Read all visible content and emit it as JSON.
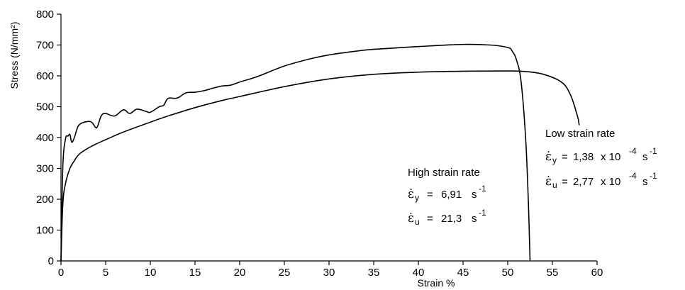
{
  "chart_data": {
    "type": "line",
    "title": "",
    "xlabel": "Strain %",
    "ylabel": "Stress (N/mm²)",
    "xlim": [
      0,
      60
    ],
    "ylim": [
      0,
      800
    ],
    "x_ticks": [
      0,
      5,
      10,
      15,
      20,
      25,
      30,
      35,
      40,
      45,
      50,
      55,
      60
    ],
    "y_ticks": [
      0,
      100,
      200,
      300,
      400,
      500,
      600,
      700,
      800
    ],
    "grid": false,
    "legend": "none",
    "series": [
      {
        "name": "High strain rate",
        "color": "#000000",
        "points": [
          [
            0,
            0
          ],
          [
            0.2,
            180
          ],
          [
            0.5,
            250
          ],
          [
            1,
            300
          ],
          [
            1.5,
            325
          ],
          [
            2,
            345
          ],
          [
            3,
            365
          ],
          [
            4,
            380
          ],
          [
            5,
            393
          ],
          [
            7,
            418
          ],
          [
            10,
            450
          ],
          [
            12,
            470
          ],
          [
            15,
            497
          ],
          [
            18,
            520
          ],
          [
            20,
            533
          ],
          [
            25,
            565
          ],
          [
            30,
            590
          ],
          [
            35,
            605
          ],
          [
            40,
            612
          ],
          [
            45,
            615
          ],
          [
            50,
            616
          ],
          [
            52,
            614
          ],
          [
            54,
            605
          ],
          [
            56,
            580
          ],
          [
            57,
            540
          ],
          [
            57.8,
            470
          ],
          [
            58,
            440
          ]
        ],
        "rates": [
          {
            "symbol": "ε̇",
            "sub": "y",
            "value": "6,91",
            "unit": "s",
            "exp": "-1"
          },
          {
            "symbol": "ε̇",
            "sub": "u",
            "value": "21,3",
            "unit": "s",
            "exp": "-1"
          }
        ],
        "label": "High strain rate"
      },
      {
        "name": "Low strain rate",
        "color": "#000000",
        "points": [
          [
            0,
            0
          ],
          [
            0.2,
            300
          ],
          [
            0.5,
            395
          ],
          [
            0.8,
            405
          ],
          [
            1,
            410
          ],
          [
            1.2,
            385
          ],
          [
            1.5,
            400
          ],
          [
            2,
            440
          ],
          [
            3,
            452
          ],
          [
            3.5,
            448
          ],
          [
            4,
            432
          ],
          [
            4.5,
            470
          ],
          [
            5,
            478
          ],
          [
            6,
            470
          ],
          [
            7,
            490
          ],
          [
            7.7,
            478
          ],
          [
            8.5,
            492
          ],
          [
            9.5,
            485
          ],
          [
            10,
            482
          ],
          [
            11,
            500
          ],
          [
            11.5,
            505
          ],
          [
            12,
            527
          ],
          [
            13,
            528
          ],
          [
            14,
            545
          ],
          [
            15,
            547
          ],
          [
            16,
            552
          ],
          [
            17,
            560
          ],
          [
            18,
            567
          ],
          [
            19,
            570
          ],
          [
            20,
            580
          ],
          [
            22,
            598
          ],
          [
            25,
            632
          ],
          [
            28,
            656
          ],
          [
            30,
            668
          ],
          [
            33,
            680
          ],
          [
            35,
            686
          ],
          [
            40,
            695
          ],
          [
            45,
            702
          ],
          [
            48,
            700
          ],
          [
            50,
            692
          ],
          [
            50.5,
            680
          ],
          [
            51,
            650
          ],
          [
            51.5,
            580
          ],
          [
            52,
            400
          ],
          [
            52.3,
            200
          ],
          [
            52.5,
            0
          ]
        ],
        "rates": [
          {
            "symbol": "ε̇",
            "sub": "y",
            "value": "1,38",
            "unit": "x 10",
            "exp": "-4",
            "unit2": "s",
            "exp2": "-1"
          },
          {
            "symbol": "ε̇",
            "sub": "u",
            "value": "2,77",
            "unit": "x 10",
            "exp": "-4",
            "unit2": "s",
            "exp2": "-1"
          }
        ],
        "label": "Low strain rate"
      }
    ]
  }
}
